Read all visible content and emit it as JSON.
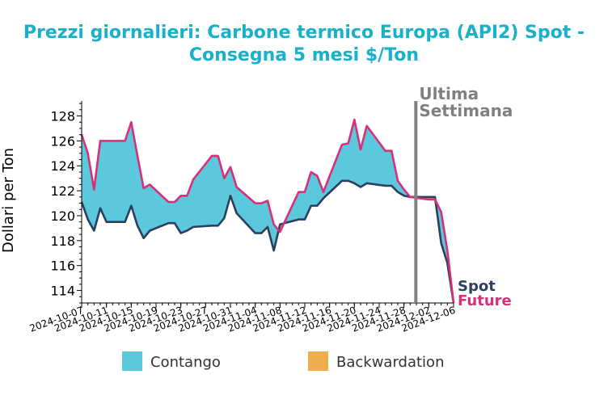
{
  "chart_data": {
    "type": "area",
    "title_lines": [
      "Prezzi giornalieri: Carbone termico Europa (API2) Spot -",
      "Consegna 5 mesi $/Ton"
    ],
    "xlabel": "",
    "ylabel": "Dollari per Ton",
    "ylim": [
      113,
      129.2
    ],
    "yticks": [
      114,
      116,
      118,
      120,
      122,
      124,
      126,
      128
    ],
    "x": [
      "2024-10-07",
      "2024-10-08",
      "2024-10-09",
      "2024-10-10",
      "2024-10-11",
      "2024-10-14",
      "2024-10-15",
      "2024-10-16",
      "2024-10-17",
      "2024-10-18",
      "2024-10-21",
      "2024-10-22",
      "2024-10-23",
      "2024-10-24",
      "2024-10-25",
      "2024-10-28",
      "2024-10-29",
      "2024-10-30",
      "2024-10-31",
      "2024-11-01",
      "2024-11-04",
      "2024-11-05",
      "2024-11-06",
      "2024-11-07",
      "2024-11-08",
      "2024-11-11",
      "2024-11-12",
      "2024-11-13",
      "2024-11-14",
      "2024-11-15",
      "2024-11-18",
      "2024-11-19",
      "2024-11-20",
      "2024-11-21",
      "2024-11-22",
      "2024-11-25",
      "2024-11-26",
      "2024-11-27",
      "2024-11-28",
      "2024-11-29",
      "2024-12-02",
      "2024-12-03",
      "2024-12-04",
      "2024-12-05",
      "2024-12-06"
    ],
    "xtick_labels": [
      "2024-10-07",
      "2024-10-11",
      "2024-10-15",
      "2024-10-19",
      "2024-10-23",
      "2024-10-27",
      "2024-10-31",
      "2024-11-04",
      "2024-11-08",
      "2024-11-12",
      "2024-11-16",
      "2024-11-20",
      "2024-11-24",
      "2024-11-28",
      "2024-12-02",
      "2024-12-06"
    ],
    "series": [
      {
        "name": "Spot",
        "color": "#2b3f5f",
        "values": [
          121.1,
          119.7,
          118.8,
          120.6,
          119.5,
          119.5,
          120.8,
          119.2,
          118.2,
          118.8,
          119.4,
          119.4,
          118.6,
          118.8,
          119.1,
          119.2,
          119.2,
          119.8,
          121.6,
          120.2,
          118.6,
          118.6,
          119.1,
          117.2,
          119.3,
          119.7,
          119.7,
          120.8,
          120.8,
          121.4,
          122.8,
          122.8,
          122.6,
          122.3,
          122.6,
          122.4,
          122.4,
          121.9,
          121.6,
          121.5,
          121.5,
          121.5,
          117.8,
          116.2,
          113.0
        ]
      },
      {
        "name": "Future",
        "color": "#d6307a",
        "values": [
          126.5,
          125.0,
          122.1,
          126.0,
          126.0,
          126.0,
          127.5,
          124.8,
          122.2,
          122.5,
          121.1,
          121.1,
          121.6,
          121.6,
          122.9,
          124.8,
          124.8,
          123.0,
          123.9,
          122.3,
          121.0,
          121.0,
          121.2,
          119.3,
          118.7,
          121.9,
          121.9,
          123.5,
          123.2,
          121.9,
          125.7,
          125.8,
          127.7,
          125.3,
          127.2,
          125.2,
          125.2,
          122.8,
          122.1,
          121.5,
          121.3,
          121.3,
          120.3,
          117.2,
          113.0
        ]
      }
    ],
    "annotation": {
      "lines": [
        "Ultima",
        "Settimana"
      ],
      "x": "2024-11-29"
    },
    "legend": [
      {
        "label": "Contango",
        "color": "#5bc8dc"
      },
      {
        "label": "Backwardation",
        "color": "#efad4b"
      }
    ],
    "legend_position": "bottom",
    "grid": false
  }
}
